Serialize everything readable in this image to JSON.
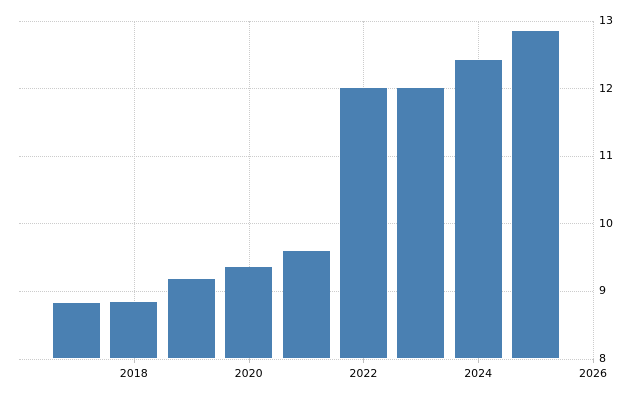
{
  "chart": {
    "background_color": "#ffffff",
    "bar_color": "#4a80b2",
    "gridline_color": "#cccccc",
    "tick_color": "#c0c0c0",
    "label_color": "#000000"
  },
  "chart_data": {
    "type": "bar",
    "title": "",
    "xlabel": "",
    "ylabel": "",
    "x": [
      2017,
      2018,
      2019,
      2020,
      2021,
      2022,
      2023,
      2024,
      2025
    ],
    "values": [
      8.82,
      8.83,
      9.17,
      9.35,
      9.59,
      12.0,
      12.0,
      12.42,
      12.84
    ],
    "xlim": [
      2016,
      2026
    ],
    "ylim": [
      8,
      13
    ],
    "x_ticks": [
      2018,
      2020,
      2022,
      2024,
      2026
    ],
    "x_tick_labels": [
      "2018",
      "2020",
      "2022",
      "2024",
      "2026"
    ],
    "y_ticks": [
      8,
      9,
      10,
      11,
      12,
      13
    ],
    "y_tick_labels": [
      "8",
      "9",
      "10",
      "11",
      "12",
      "13"
    ],
    "y_axis_position": "right",
    "grid": "dotted",
    "legend": "none"
  }
}
